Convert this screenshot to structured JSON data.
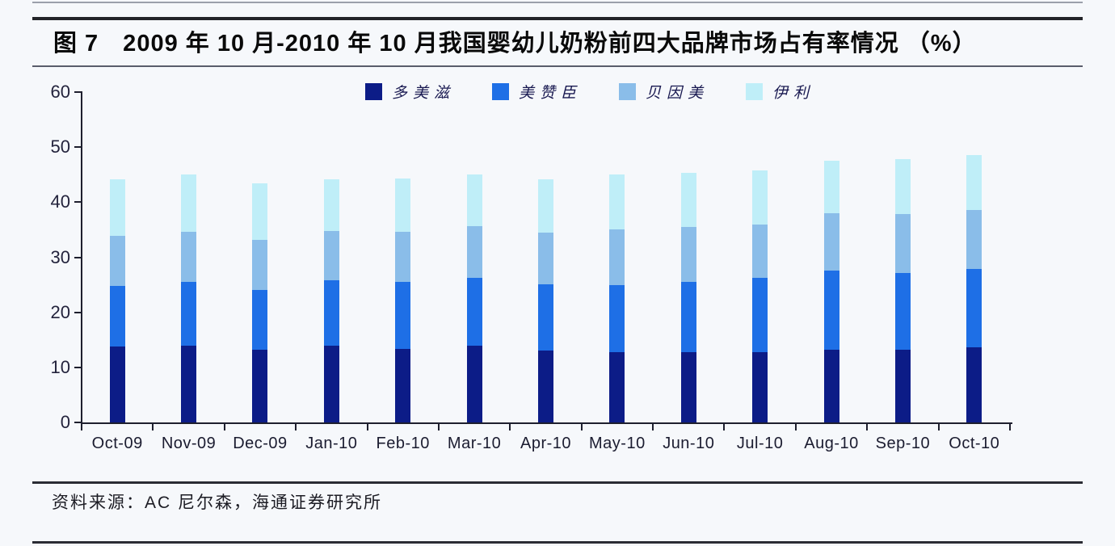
{
  "title": "图 7　2009 年 10 月-2010 年 10 月我国婴幼儿奶粉前四大品牌市场占有率情况 （%）",
  "source_note": "资料来源：AC 尼尔森，海通证券研究所",
  "chart_data": {
    "type": "bar",
    "stacked": true,
    "title": "2009年10月-2010年10月我国婴幼儿奶粉前四大品牌市场占有率情况（%）",
    "xlabel": "",
    "ylabel": "",
    "ylim": [
      0,
      60
    ],
    "yticks": [
      0,
      10,
      20,
      30,
      40,
      50,
      60
    ],
    "grid": false,
    "legend_position": "top",
    "categories": [
      "Oct-09",
      "Nov-09",
      "Dec-09",
      "Jan-10",
      "Feb-10",
      "Mar-10",
      "Apr-10",
      "May-10",
      "Jun-10",
      "Jul-10",
      "Aug-10",
      "Sep-10",
      "Oct-10"
    ],
    "series": [
      {
        "name": "多美滋",
        "color": "#0c1c87",
        "values": [
          13.8,
          14.0,
          13.2,
          14.0,
          13.4,
          14.0,
          13.0,
          12.8,
          12.8,
          12.8,
          13.2,
          13.2,
          13.7
        ]
      },
      {
        "name": "美赞臣",
        "color": "#1e6fe6",
        "values": [
          11.0,
          11.5,
          10.9,
          11.8,
          12.1,
          12.3,
          12.1,
          12.2,
          12.7,
          13.4,
          14.4,
          14.0,
          14.1
        ]
      },
      {
        "name": "贝因美",
        "color": "#8abde9",
        "values": [
          9.1,
          9.1,
          9.1,
          8.9,
          9.1,
          9.4,
          9.4,
          10.0,
          10.0,
          9.8,
          10.4,
          10.6,
          10.8
        ]
      },
      {
        "name": "伊利",
        "color": "#bfeef8",
        "values": [
          10.2,
          10.4,
          10.2,
          9.5,
          9.7,
          9.3,
          9.6,
          10.0,
          9.9,
          9.7,
          9.5,
          10.0,
          9.9
        ]
      }
    ]
  }
}
